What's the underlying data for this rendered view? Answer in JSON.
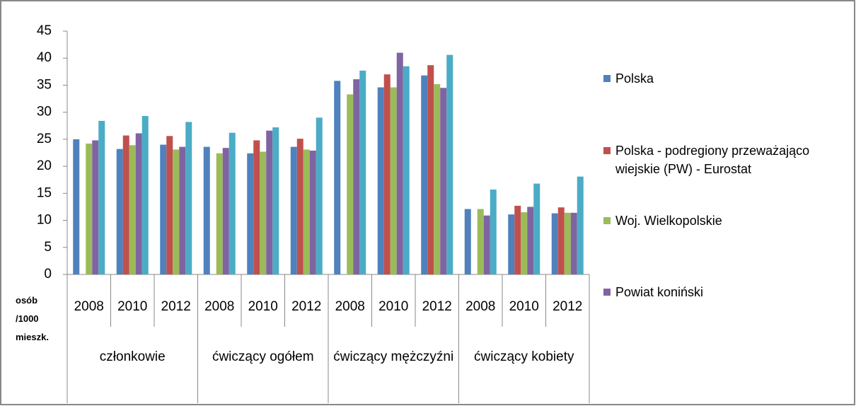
{
  "chart_data": {
    "type": "bar",
    "groups": [
      "członkowie",
      "ćwiczący ogółem",
      "ćwiczący mężczyźni",
      "ćwiczący kobiety"
    ],
    "categories": [
      "2008",
      "2010",
      "2012",
      "2008",
      "2010",
      "2012",
      "2008",
      "2010",
      "2012",
      "2008",
      "2010",
      "2012"
    ],
    "axis_label": "osób /1000 mieszk.",
    "series": [
      {
        "name": "Polska",
        "color": "#4f81bd",
        "values": [
          25,
          23.2,
          24,
          23.6,
          22.4,
          23.6,
          35.8,
          34.6,
          36.8,
          12.1,
          11.1,
          11.3
        ]
      },
      {
        "name": "Polska - podregiony przeważająco wiejskie (PW) - Eurostat",
        "color": "#c0504d",
        "values": [
          null,
          25.7,
          25.6,
          null,
          24.8,
          25.1,
          null,
          37.0,
          38.7,
          null,
          12.7,
          12.4
        ]
      },
      {
        "name": "Woj. Wielkopolskie",
        "color": "#9bbb59",
        "values": [
          24.2,
          23.9,
          23.1,
          22.4,
          22.7,
          23.1,
          33.3,
          34.6,
          35.2,
          12.1,
          11.5,
          11.4
        ]
      },
      {
        "name": "Powiat koniński",
        "color": "#8064a2",
        "values": [
          24.8,
          26.1,
          23.6,
          23.4,
          26.6,
          22.9,
          36.1,
          41.0,
          34.5,
          10.9,
          12.5,
          11.4
        ]
      },
      {
        "color": "#4bacc6",
        "values": [
          28.4,
          29.3,
          28.2,
          26.2,
          27.2,
          29.0,
          37.7,
          38.5,
          40.6,
          15.7,
          16.8,
          18.1
        ]
      }
    ],
    "ylim": [
      0,
      45
    ],
    "yticks": [
      0,
      5,
      10,
      15,
      20,
      25,
      30,
      35,
      40,
      45
    ],
    "grid": false,
    "legend": "right"
  }
}
